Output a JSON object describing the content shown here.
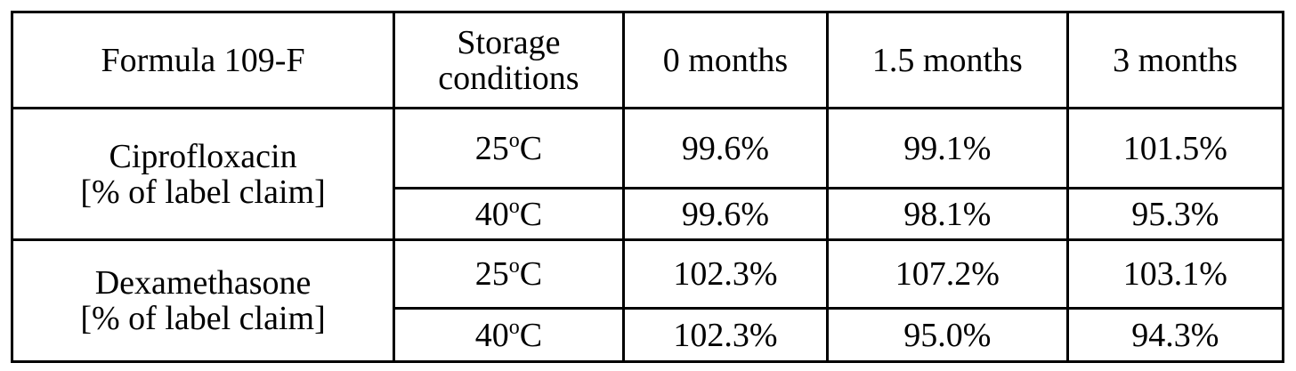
{
  "table": {
    "header": [
      "Formula 109-F",
      "Storage conditions",
      "0 months",
      "1.5 months",
      "3 months"
    ],
    "groups": [
      {
        "name": "Ciprofloxacin",
        "unit": "[% of label claim]",
        "rows": [
          {
            "temp": "25",
            "sup": "o",
            "scale": "C",
            "values": [
              "99.6%",
              "99.1%",
              "101.5%"
            ]
          },
          {
            "temp": "40",
            "sup": "o",
            "scale": "C",
            "values": [
              "99.6%",
              "98.1%",
              "95.3%"
            ]
          }
        ]
      },
      {
        "name": "Dexamethasone",
        "unit": "[% of label claim]",
        "rows": [
          {
            "temp": "25",
            "sup": "o",
            "scale": "C",
            "values": [
              "102.3%",
              "107.2%",
              "103.1%"
            ]
          },
          {
            "temp": "40",
            "sup": "o",
            "scale": "C",
            "values": [
              "102.3%",
              "95.0%",
              "94.3%"
            ]
          }
        ]
      }
    ]
  }
}
